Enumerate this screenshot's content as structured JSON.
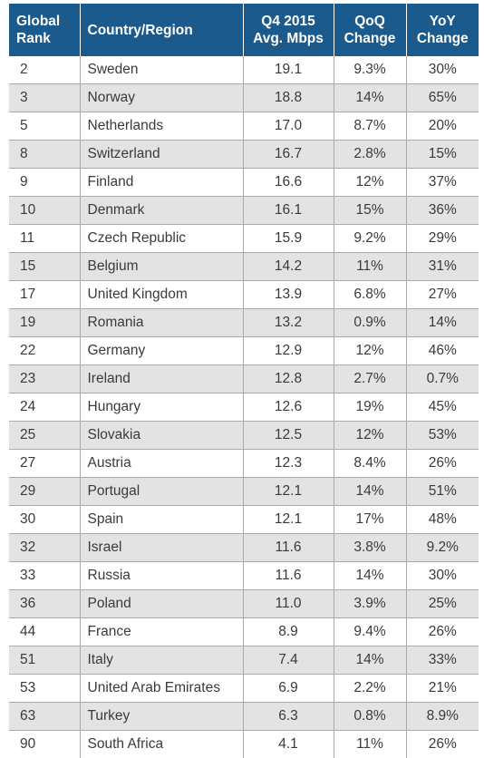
{
  "table": {
    "headers": {
      "rank": [
        "Global",
        "Rank"
      ],
      "country": [
        "Country/Region"
      ],
      "speed": [
        "Q4 2015",
        "Avg. Mbps"
      ],
      "qoq": [
        "QoQ",
        "Change"
      ],
      "yoy": [
        "YoY",
        "Change"
      ]
    },
    "rows": [
      [
        "2",
        "Sweden",
        "19.1",
        "9.3%",
        "30%"
      ],
      [
        "3",
        "Norway",
        "18.8",
        "14%",
        "65%"
      ],
      [
        "5",
        "Netherlands",
        "17.0",
        "8.7%",
        "20%"
      ],
      [
        "8",
        "Switzerland",
        "16.7",
        "2.8%",
        "15%"
      ],
      [
        "9",
        "Finland",
        "16.6",
        "12%",
        "37%"
      ],
      [
        "10",
        "Denmark",
        "16.1",
        "15%",
        "36%"
      ],
      [
        "11",
        "Czech Republic",
        "15.9",
        "9.2%",
        "29%"
      ],
      [
        "15",
        "Belgium",
        "14.2",
        "11%",
        "31%"
      ],
      [
        "17",
        "United Kingdom",
        "13.9",
        "6.8%",
        "27%"
      ],
      [
        "19",
        "Romania",
        "13.2",
        "0.9%",
        "14%"
      ],
      [
        "22",
        "Germany",
        "12.9",
        "12%",
        "46%"
      ],
      [
        "23",
        "Ireland",
        "12.8",
        "2.7%",
        "0.7%"
      ],
      [
        "24",
        "Hungary",
        "12.6",
        "19%",
        "45%"
      ],
      [
        "25",
        "Slovakia",
        "12.5",
        "12%",
        "53%"
      ],
      [
        "27",
        "Austria",
        "12.3",
        "8.4%",
        "26%"
      ],
      [
        "29",
        "Portugal",
        "12.1",
        "14%",
        "51%"
      ],
      [
        "30",
        "Spain",
        "12.1",
        "17%",
        "48%"
      ],
      [
        "32",
        "Israel",
        "11.6",
        "3.8%",
        "9.2%"
      ],
      [
        "33",
        "Russia",
        "11.6",
        "14%",
        "30%"
      ],
      [
        "36",
        "Poland",
        "11.0",
        "3.9%",
        "25%"
      ],
      [
        "44",
        "France",
        "8.9",
        "9.4%",
        "26%"
      ],
      [
        "51",
        "Italy",
        "7.4",
        "14%",
        "33%"
      ],
      [
        "53",
        "United Arab Emirates",
        "6.9",
        "2.2%",
        "21%"
      ],
      [
        "63",
        "Turkey",
        "6.3",
        "0.8%",
        "8.9%"
      ],
      [
        "90",
        "South Africa",
        "4.1",
        "11%",
        "26%"
      ]
    ]
  },
  "colors": {
    "header_bg": "#1b5a8c",
    "header_text": "#ffffff",
    "row_alt_bg": "#e3e3e3",
    "grid": "#a9a9a9",
    "cell_text": "#3a3a3a"
  }
}
